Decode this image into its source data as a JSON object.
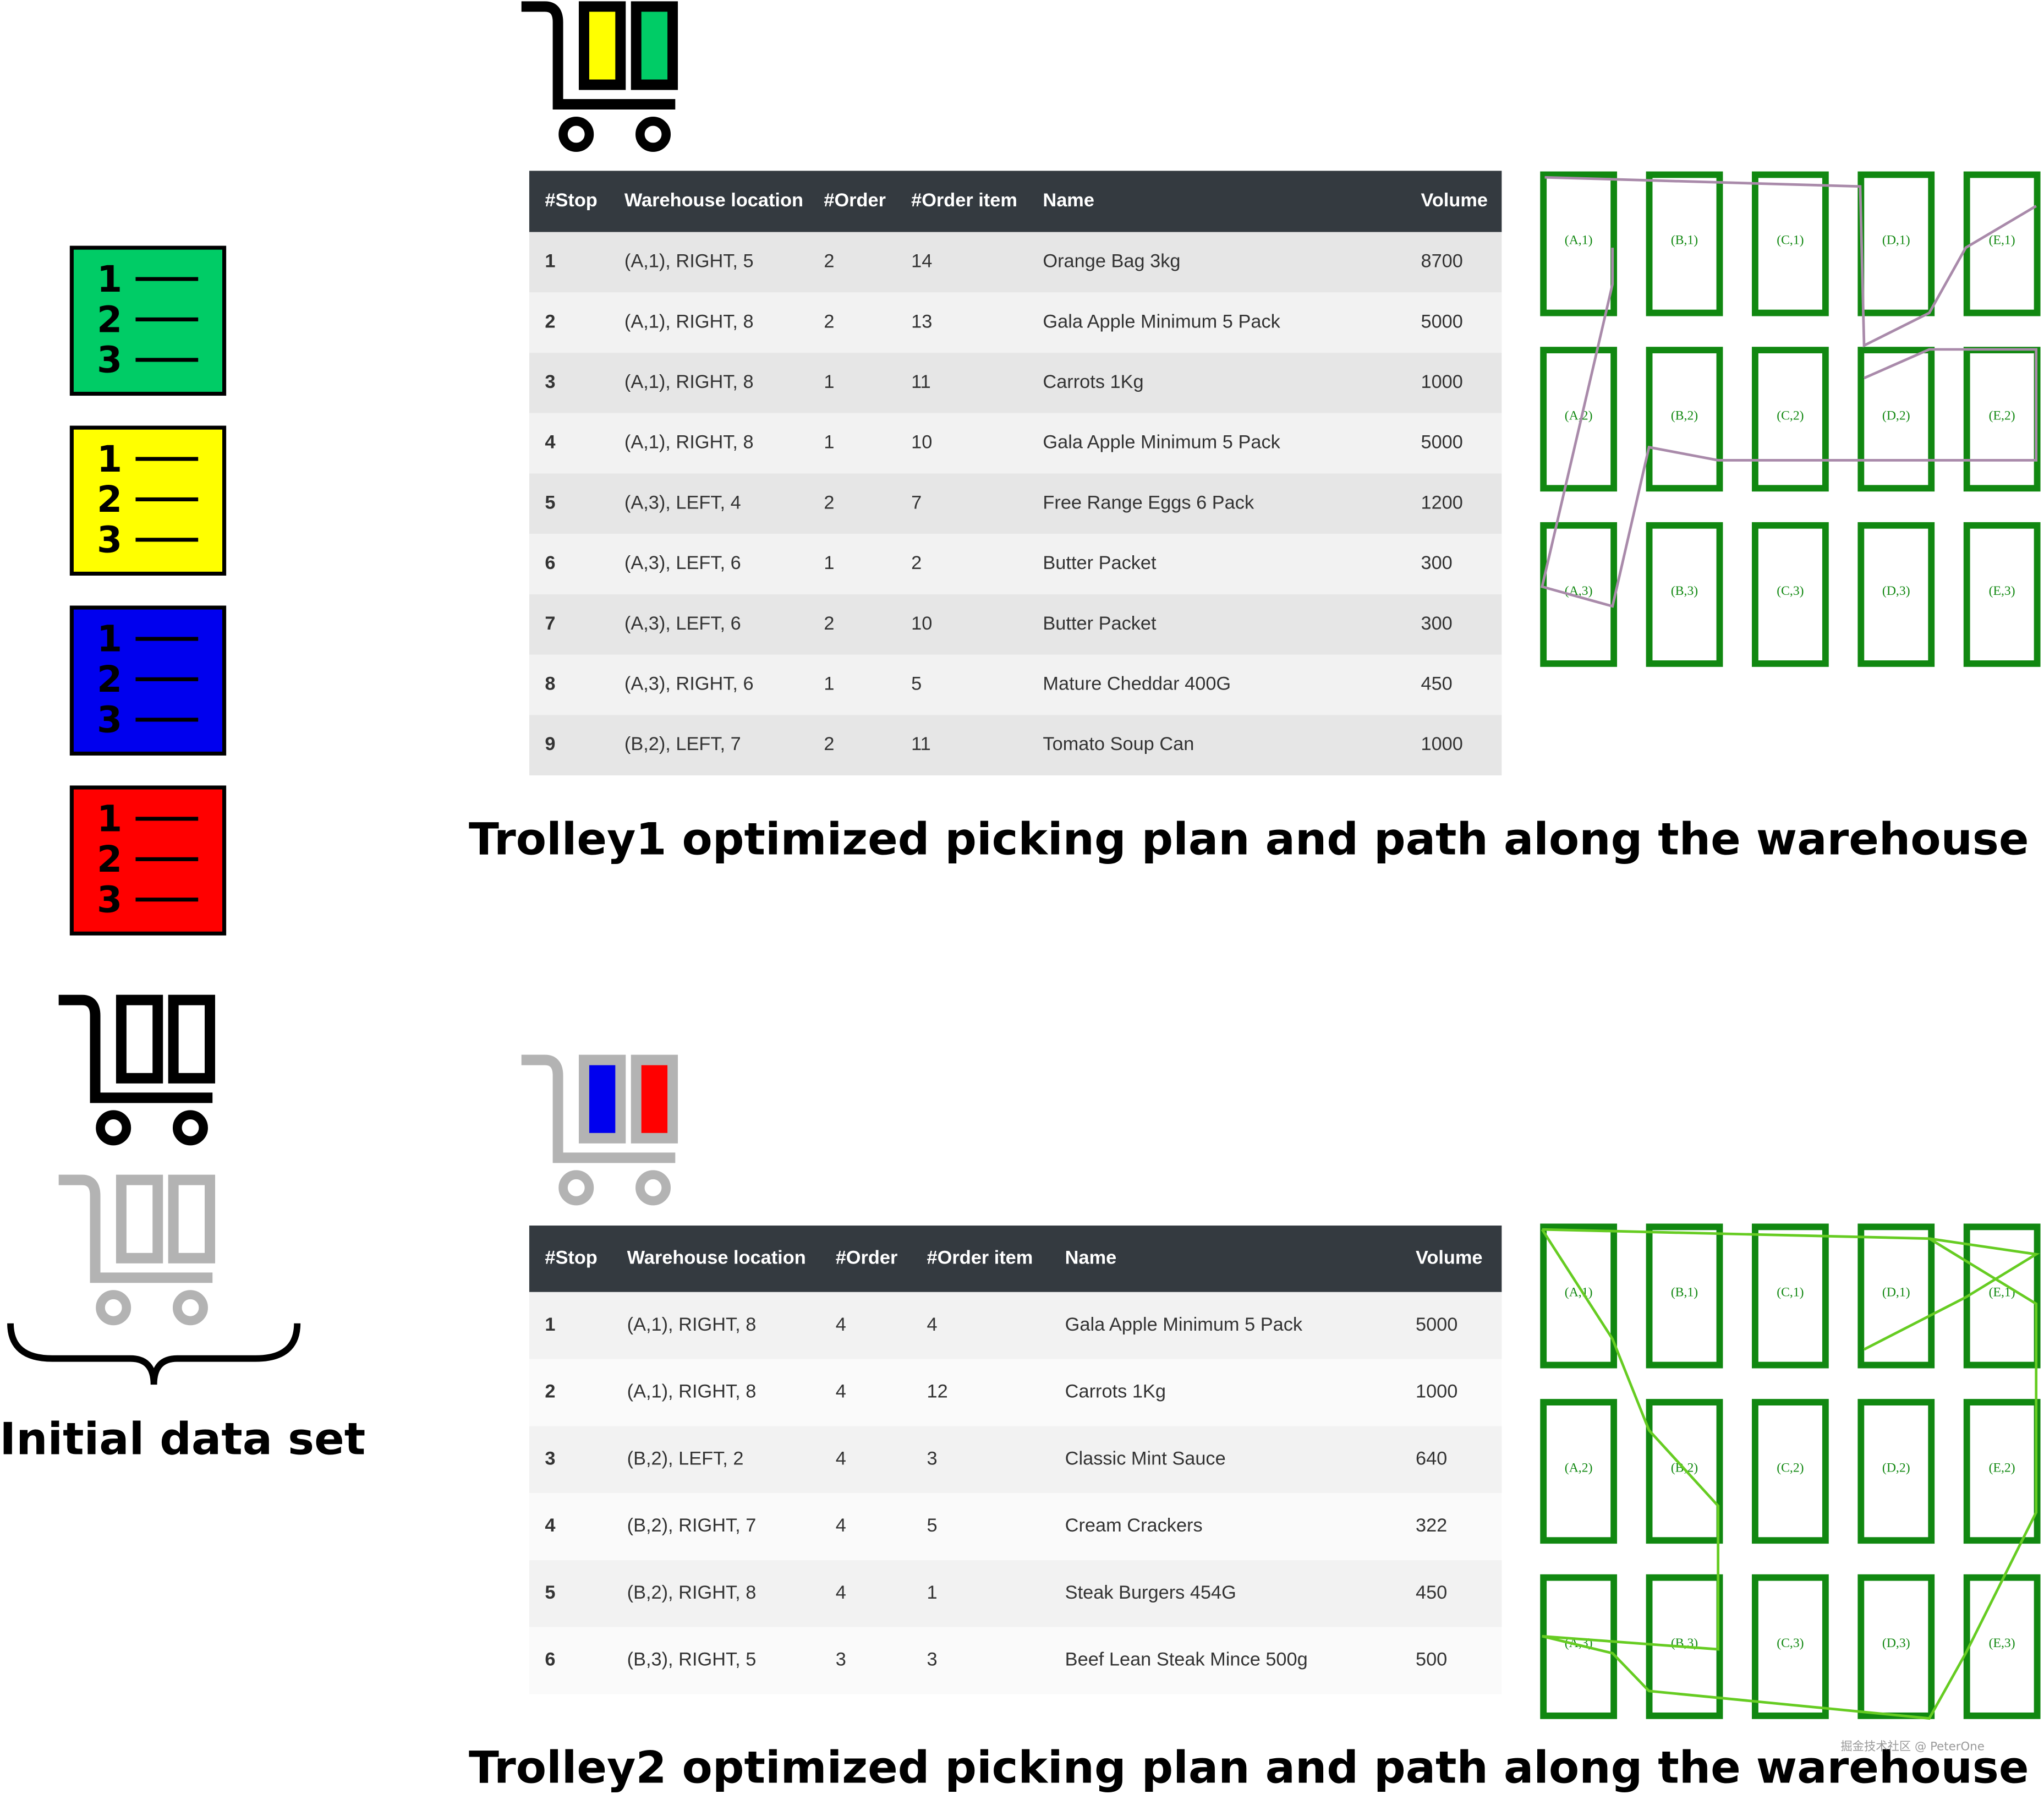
{
  "initial_data_set": {
    "list_numbers": [
      "1",
      "2",
      "3"
    ],
    "label": "Initial data set"
  },
  "warehouse": {
    "cells": [
      [
        "(A,1)",
        "(B,1)",
        "(C,1)",
        "(D,1)",
        "(E,1)"
      ],
      [
        "(A,2)",
        "(B,2)",
        "(C,2)",
        "(D,2)",
        "(E,2)"
      ],
      [
        "(A,3)",
        "(B,3)",
        "(C,3)",
        "(D,3)",
        "(E,3)"
      ]
    ]
  },
  "plans": [
    {
      "table": {
        "headers": [
          "#Stop",
          "Warehouse location",
          "#Order",
          "#Order item",
          "Name",
          "Volume"
        ],
        "rows": [
          [
            1,
            "(A,1), RIGHT, 5",
            2,
            14,
            "Orange Bag 3kg",
            8700
          ],
          [
            2,
            "(A,1), RIGHT, 8",
            2,
            13,
            "Gala Apple Minimum 5 Pack",
            5000
          ],
          [
            3,
            "(A,1), RIGHT, 8",
            1,
            11,
            "Carrots 1Kg",
            1000
          ],
          [
            4,
            "(A,1), RIGHT, 8",
            1,
            10,
            "Gala Apple Minimum 5 Pack",
            5000
          ],
          [
            5,
            "(A,3), LEFT, 4",
            2,
            7,
            "Free Range Eggs 6 Pack",
            1200
          ],
          [
            6,
            "(A,3), LEFT, 6",
            1,
            2,
            "Butter Packet",
            300
          ],
          [
            7,
            "(A,3), LEFT, 6",
            2,
            10,
            "Butter Packet",
            300
          ],
          [
            8,
            "(A,3), RIGHT, 6",
            1,
            5,
            "Mature Cheddar 400G",
            450
          ],
          [
            9,
            "(B,2), LEFT, 7",
            2,
            11,
            "Tomato Soup Can",
            1000
          ]
        ]
      },
      "caption": "Trolley1 optimized picking plan and path along the warehouse"
    },
    {
      "table": {
        "headers": [
          "#Stop",
          "Warehouse location",
          "#Order",
          "#Order item",
          "Name",
          "Volume"
        ],
        "rows": [
          [
            1,
            "(A,1), RIGHT, 8",
            4,
            4,
            "Gala Apple Minimum 5 Pack",
            5000
          ],
          [
            2,
            "(A,1), RIGHT, 8",
            4,
            12,
            "Carrots 1Kg",
            1000
          ],
          [
            3,
            "(B,2), LEFT, 2",
            4,
            3,
            "Classic Mint Sauce",
            640
          ],
          [
            4,
            "(B,2), RIGHT, 7",
            4,
            5,
            "Cream Crackers",
            322
          ],
          [
            5,
            "(B,2), RIGHT, 8",
            4,
            1,
            "Steak Burgers 454G",
            450
          ],
          [
            6,
            "(B,3), RIGHT, 5",
            3,
            3,
            "Beef Lean Steak Mince 500g",
            500
          ]
        ]
      },
      "caption": "Trolley2 optimized picking plan and path along the warehouse"
    }
  ],
  "watermark": "掘金技术社区 @ PeterOne"
}
